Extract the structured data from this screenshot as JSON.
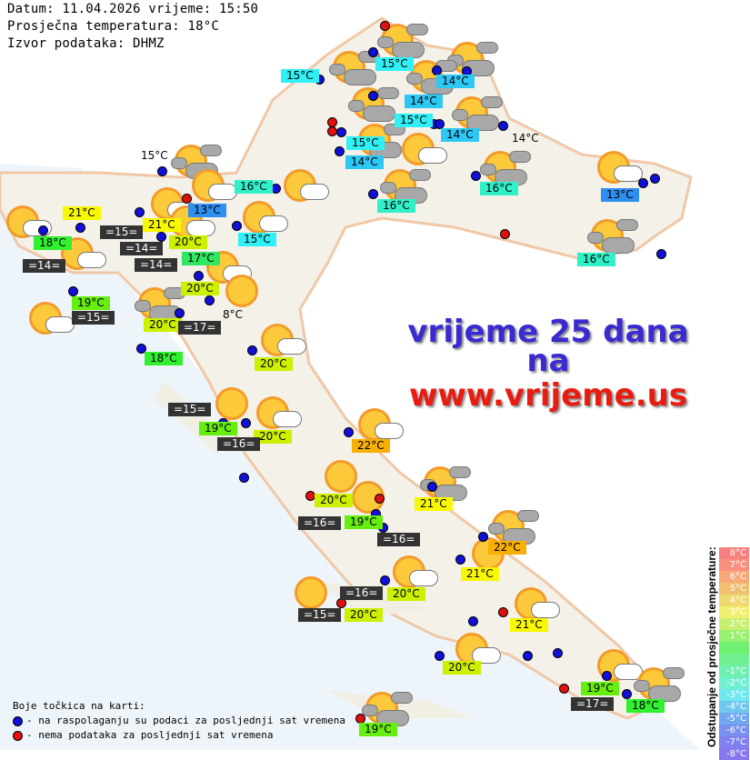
{
  "header": {
    "date_line": "Datum: 11.04.2026 vrijeme: 15:50",
    "avg_line": "Prosječna temperatura: 18°C",
    "source_line": "Izvor podataka: DHMZ"
  },
  "promo": {
    "line1": "vrijeme 25 dana",
    "line2": "na",
    "line3": "www.vrijeme.us"
  },
  "colors": {
    "t13": "#2f8ff0",
    "t14": "#2ec8f5",
    "t15": "#30f0f5",
    "t16": "#30f0c8",
    "t17": "#30e860",
    "t18": "#30f030",
    "t19": "#66ee10",
    "t20": "#ccf000",
    "t21": "#f8f800",
    "t22": "#f8b000",
    "dot_ok": "#1010d8",
    "dot_nodata": "#e01010",
    "sea": "#333333"
  },
  "labels": [
    {
      "text": "15°C",
      "kind": "t15"
    },
    {
      "text": "15°C",
      "kind": "t15"
    },
    {
      "text": "14°C",
      "kind": "t14"
    },
    {
      "text": "14°C",
      "kind": "t14"
    },
    {
      "text": "15°C",
      "kind": "t15"
    },
    {
      "text": "14°C",
      "kind": "t14"
    },
    {
      "text": "15°C",
      "kind": "t15"
    },
    {
      "text": "14°C",
      "kind": "t14"
    },
    {
      "text": "14°C",
      "kind": "plain"
    },
    {
      "text": "15°C",
      "kind": "plain"
    },
    {
      "text": "16°C",
      "kind": "t16"
    },
    {
      "text": "13°C",
      "kind": "t13"
    },
    {
      "text": "21°C",
      "kind": "t21"
    },
    {
      "text": "21°C",
      "kind": "t21"
    },
    {
      "text": "15°C",
      "kind": "t15"
    },
    {
      "text": "16°C",
      "kind": "t16"
    },
    {
      "text": "16°C",
      "kind": "t16"
    },
    {
      "text": "13°C",
      "kind": "t13"
    },
    {
      "text": "16°C",
      "kind": "t16"
    },
    {
      "text": "18°C",
      "kind": "t18"
    },
    {
      "text": "20°C",
      "kind": "t20"
    },
    {
      "text": "17°C",
      "kind": "t17"
    },
    {
      "text": "19°C",
      "kind": "t19"
    },
    {
      "text": "20°C",
      "kind": "t20"
    },
    {
      "text": "20°C",
      "kind": "t20"
    },
    {
      "text": "8°C",
      "kind": "plain"
    },
    {
      "text": "18°C",
      "kind": "t18"
    },
    {
      "text": "20°C",
      "kind": "t20"
    },
    {
      "text": "19°C",
      "kind": "t19"
    },
    {
      "text": "20°C",
      "kind": "t20"
    },
    {
      "text": "22°C",
      "kind": "t22"
    },
    {
      "text": "20°C",
      "kind": "t20"
    },
    {
      "text": "21°C",
      "kind": "t21"
    },
    {
      "text": "19°C",
      "kind": "t19"
    },
    {
      "text": "22°C",
      "kind": "t22"
    },
    {
      "text": "21°C",
      "kind": "t21"
    },
    {
      "text": "20°C",
      "kind": "t20"
    },
    {
      "text": "20°C",
      "kind": "t20"
    },
    {
      "text": "21°C",
      "kind": "t21"
    },
    {
      "text": "20°C",
      "kind": "t20"
    },
    {
      "text": "19°C",
      "kind": "t19"
    },
    {
      "text": "18°C",
      "kind": "t18"
    },
    {
      "text": "19°C",
      "kind": "t19"
    }
  ],
  "sea_labels": [
    "=15=",
    "=14=",
    "=14=",
    "=14=",
    "=15=",
    "=17=",
    "=15=",
    "=16=",
    "=16=",
    "=16=",
    "=16=",
    "=15=",
    "=17="
  ],
  "dots": [
    "nodata",
    "ok",
    "ok",
    "ok",
    "ok",
    "ok",
    "nodata",
    "nodata",
    "ok",
    "ok",
    "ok",
    "ok",
    "ok",
    "ok",
    "ok",
    "ok",
    "ok",
    "ok",
    "ok",
    "nodata",
    "ok",
    "ok",
    "ok",
    "ok",
    "ok",
    "ok",
    "nodata",
    "ok",
    "ok",
    "ok",
    "ok",
    "ok",
    "ok",
    "ok",
    "ok",
    "ok",
    "ok",
    "ok",
    "nodata",
    "ok",
    "ok",
    "nodata",
    "ok",
    "ok",
    "ok",
    "ok",
    "nodata",
    "ok",
    "nodata",
    "ok",
    "ok",
    "ok",
    "ok",
    "nodata",
    "ok",
    "nodata",
    "ok"
  ],
  "icons": [
    "partly-cloudy",
    "partly-cloudy",
    "partly-cloudy",
    "partly-cloudy",
    "partly-cloudy",
    "partly-cloudy",
    "partly-cloudy",
    "sun-light-cloud",
    "partly-cloudy",
    "partly-cloudy",
    "sun-light-cloud",
    "partly-cloudy",
    "partly-cloudy",
    "sun-light-cloud",
    "sun-light-cloud",
    "sun-light-cloud",
    "sun-light-cloud",
    "sun-light-cloud",
    "sun-light-cloud",
    "sun-light-cloud",
    "sun-light-cloud",
    "sunny",
    "partly-cloudy",
    "sun-light-cloud",
    "sun-light-cloud",
    "sunny",
    "sun-light-cloud",
    "sun-light-cloud",
    "sunny",
    "sunny",
    "partly-cloudy",
    "partly-cloudy",
    "sunny",
    "sun-light-cloud",
    "sunny",
    "sun-light-cloud",
    "sun-light-cloud",
    "sun-light-cloud",
    "partly-cloudy",
    "partly-cloudy"
  ],
  "legend": {
    "title": "Boje točkica na karti:",
    "ok": "- na raspolaganju su podaci za posljednji sat vremena",
    "nodata": "- nema podataka za posljednji sat vremena"
  },
  "scale": {
    "title": "Odstupanje od prosječne temperature:",
    "steps": [
      {
        "label": "8°C",
        "color": "#f88080"
      },
      {
        "label": "7°C",
        "color": "#f89080"
      },
      {
        "label": "6°C",
        "color": "#f8a878"
      },
      {
        "label": "5°C",
        "color": "#f0c070"
      },
      {
        "label": "4°C",
        "color": "#f0d870"
      },
      {
        "label": "3°C",
        "color": "#f0f070"
      },
      {
        "label": "2°C",
        "color": "#c8f070"
      },
      {
        "label": "1°C",
        "color": "#98f070"
      },
      {
        "label": "",
        "color": "#70f070"
      },
      {
        "label": "",
        "color": "#70f090"
      },
      {
        "label": "-1°C",
        "color": "#70f0b0"
      },
      {
        "label": "-2°C",
        "color": "#70f0d0"
      },
      {
        "label": "-3°C",
        "color": "#70e8f0"
      },
      {
        "label": "-4°C",
        "color": "#70c8f0"
      },
      {
        "label": "-5°C",
        "color": "#70a8f0"
      },
      {
        "label": "-6°C",
        "color": "#7890f0"
      },
      {
        "label": "-7°C",
        "color": "#8080f0"
      },
      {
        "label": "-8°C",
        "color": "#8878f0"
      }
    ]
  }
}
